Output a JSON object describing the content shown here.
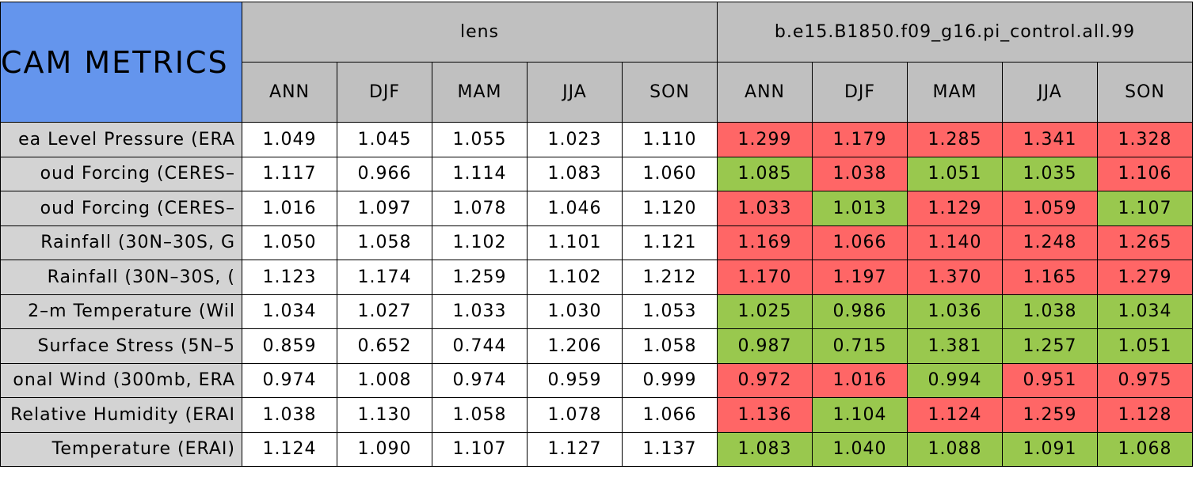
{
  "table": {
    "title": "CAM METRICS",
    "groups": [
      "lens",
      "b.e15.B1850.f09_g16.pi_control.all.99"
    ],
    "seasons": [
      [
        "ANN",
        "DJF",
        "MAM",
        "JJA",
        "SON"
      ],
      [
        "ANN",
        "DJF",
        "MAM",
        "JJA",
        "SON"
      ]
    ],
    "header_color": "#c0c0c0",
    "title_color": "#6495ed",
    "label_color": "#d3d3d3",
    "rows": [
      {
        "label": "ea Level Pressure (ERA",
        "values": [
          "1.049",
          "1.045",
          "1.055",
          "1.023",
          "1.110",
          "1.299",
          "1.179",
          "1.285",
          "1.341",
          "1.328"
        ],
        "colors": [
          "#ffffff",
          "#ffffff",
          "#ffffff",
          "#ffffff",
          "#ffffff",
          "#ff6666",
          "#ff6666",
          "#ff6666",
          "#ff6666",
          "#ff6666"
        ]
      },
      {
        "label": "oud Forcing (CERES–",
        "values": [
          "1.117",
          "0.966",
          "1.114",
          "1.083",
          "1.060",
          "1.085",
          "1.038",
          "1.051",
          "1.035",
          "1.106"
        ],
        "colors": [
          "#ffffff",
          "#ffffff",
          "#ffffff",
          "#ffffff",
          "#ffffff",
          "#99c84e",
          "#ff6666",
          "#99c84e",
          "#99c84e",
          "#ff6666"
        ]
      },
      {
        "label": "oud Forcing (CERES–",
        "values": [
          "1.016",
          "1.097",
          "1.078",
          "1.046",
          "1.120",
          "1.033",
          "1.013",
          "1.129",
          "1.059",
          "1.107"
        ],
        "colors": [
          "#ffffff",
          "#ffffff",
          "#ffffff",
          "#ffffff",
          "#ffffff",
          "#ff6666",
          "#99c84e",
          "#ff6666",
          "#ff6666",
          "#99c84e"
        ]
      },
      {
        "label": "Rainfall (30N–30S, G",
        "values": [
          "1.050",
          "1.058",
          "1.102",
          "1.101",
          "1.121",
          "1.169",
          "1.066",
          "1.140",
          "1.248",
          "1.265"
        ],
        "colors": [
          "#ffffff",
          "#ffffff",
          "#ffffff",
          "#ffffff",
          "#ffffff",
          "#ff6666",
          "#ff6666",
          "#ff6666",
          "#ff6666",
          "#ff6666"
        ]
      },
      {
        "label": "Rainfall (30N–30S, (",
        "values": [
          "1.123",
          "1.174",
          "1.259",
          "1.102",
          "1.212",
          "1.170",
          "1.197",
          "1.370",
          "1.165",
          "1.279"
        ],
        "colors": [
          "#ffffff",
          "#ffffff",
          "#ffffff",
          "#ffffff",
          "#ffffff",
          "#ff6666",
          "#ff6666",
          "#ff6666",
          "#ff6666",
          "#ff6666"
        ]
      },
      {
        "label": "2–m Temperature (Wil",
        "values": [
          "1.034",
          "1.027",
          "1.033",
          "1.030",
          "1.053",
          "1.025",
          "0.986",
          "1.036",
          "1.038",
          "1.034"
        ],
        "colors": [
          "#ffffff",
          "#ffffff",
          "#ffffff",
          "#ffffff",
          "#ffffff",
          "#99c84e",
          "#99c84e",
          "#99c84e",
          "#99c84e",
          "#99c84e"
        ]
      },
      {
        "label": "Surface Stress (5N–5",
        "values": [
          "0.859",
          "0.652",
          "0.744",
          "1.206",
          "1.058",
          "0.987",
          "0.715",
          "1.381",
          "1.257",
          "1.051"
        ],
        "colors": [
          "#ffffff",
          "#ffffff",
          "#ffffff",
          "#ffffff",
          "#ffffff",
          "#99c84e",
          "#99c84e",
          "#99c84e",
          "#99c84e",
          "#99c84e"
        ]
      },
      {
        "label": "onal Wind (300mb, ERA",
        "values": [
          "0.974",
          "1.008",
          "0.974",
          "0.959",
          "0.999",
          "0.972",
          "1.016",
          "0.994",
          "0.951",
          "0.975"
        ],
        "colors": [
          "#ffffff",
          "#ffffff",
          "#ffffff",
          "#ffffff",
          "#ffffff",
          "#ff6666",
          "#ff6666",
          "#99c84e",
          "#ff6666",
          "#ff6666"
        ]
      },
      {
        "label": "Relative Humidity (ERAI",
        "values": [
          "1.038",
          "1.130",
          "1.058",
          "1.078",
          "1.066",
          "1.136",
          "1.104",
          "1.124",
          "1.259",
          "1.128"
        ],
        "colors": [
          "#ffffff",
          "#ffffff",
          "#ffffff",
          "#ffffff",
          "#ffffff",
          "#ff6666",
          "#99c84e",
          "#ff6666",
          "#ff6666",
          "#ff6666"
        ]
      },
      {
        "label": "Temperature (ERAI)",
        "values": [
          "1.124",
          "1.090",
          "1.107",
          "1.127",
          "1.137",
          "1.083",
          "1.040",
          "1.088",
          "1.091",
          "1.068"
        ],
        "colors": [
          "#ffffff",
          "#ffffff",
          "#ffffff",
          "#ffffff",
          "#ffffff",
          "#99c84e",
          "#99c84e",
          "#99c84e",
          "#99c84e",
          "#99c84e"
        ]
      }
    ]
  }
}
